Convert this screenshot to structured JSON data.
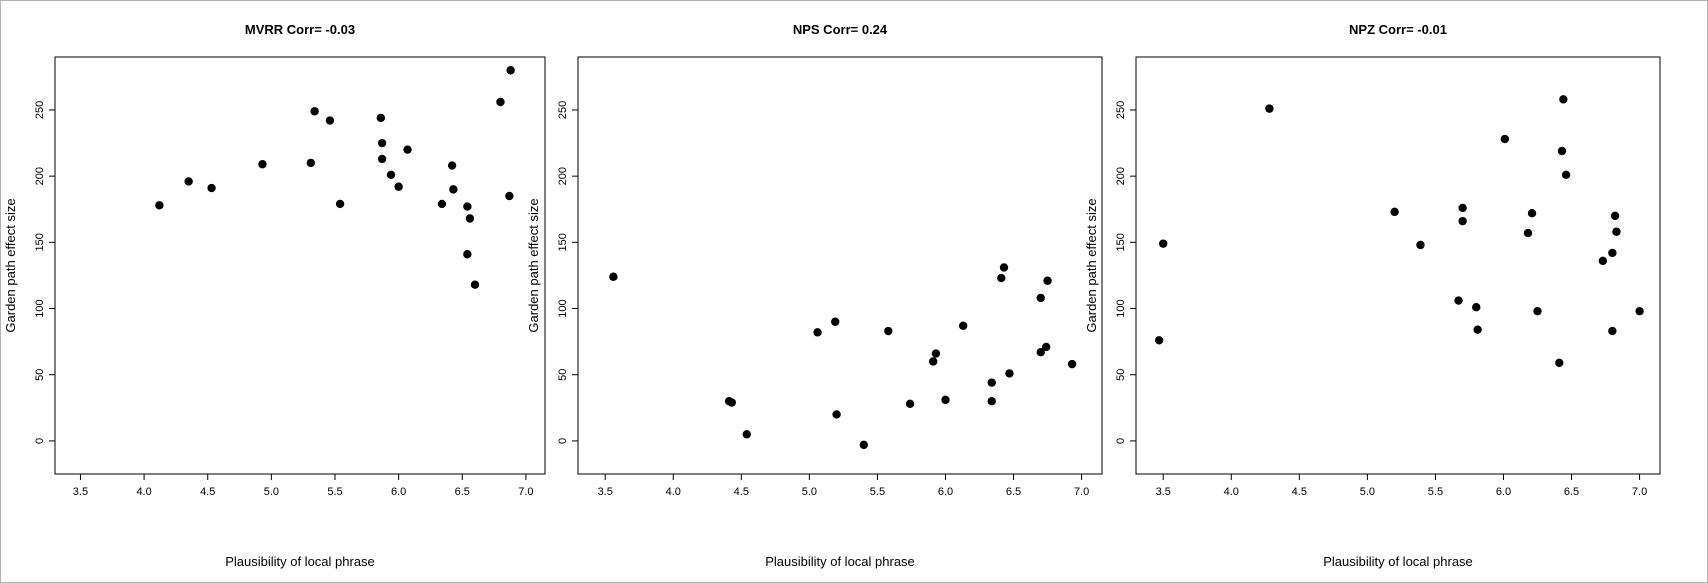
{
  "chart_data": [
    {
      "type": "scatter",
      "title": "MVRR Corr= -0.03",
      "xlabel": "Plausibility of local phrase",
      "ylabel": "Garden path effect size",
      "xlim": [
        3.3,
        7.15
      ],
      "ylim": [
        -25,
        290
      ],
      "xticks": [
        "3.5",
        "4.0",
        "4.5",
        "5.0",
        "5.5",
        "6.0",
        "6.5",
        "7.0"
      ],
      "yticks": [
        "0",
        "50",
        "100",
        "150",
        "200",
        "250"
      ],
      "grid": false,
      "points": [
        {
          "x": 4.12,
          "y": 178
        },
        {
          "x": 4.35,
          "y": 196
        },
        {
          "x": 4.53,
          "y": 191
        },
        {
          "x": 4.93,
          "y": 209
        },
        {
          "x": 5.31,
          "y": 210
        },
        {
          "x": 5.34,
          "y": 249
        },
        {
          "x": 5.46,
          "y": 242
        },
        {
          "x": 5.54,
          "y": 179
        },
        {
          "x": 5.86,
          "y": 244
        },
        {
          "x": 5.87,
          "y": 225
        },
        {
          "x": 5.87,
          "y": 213
        },
        {
          "x": 5.94,
          "y": 201
        },
        {
          "x": 6.0,
          "y": 192
        },
        {
          "x": 6.07,
          "y": 220
        },
        {
          "x": 6.34,
          "y": 179
        },
        {
          "x": 6.42,
          "y": 208
        },
        {
          "x": 6.43,
          "y": 190
        },
        {
          "x": 6.54,
          "y": 177
        },
        {
          "x": 6.56,
          "y": 168
        },
        {
          "x": 6.54,
          "y": 141
        },
        {
          "x": 6.6,
          "y": 118
        },
        {
          "x": 6.8,
          "y": 256
        },
        {
          "x": 6.87,
          "y": 185
        },
        {
          "x": 6.88,
          "y": 280
        }
      ]
    },
    {
      "type": "scatter",
      "title": "NPS Corr= 0.24",
      "xlabel": "Plausibility of local phrase",
      "ylabel": "Garden path effect size",
      "xlim": [
        3.3,
        7.15
      ],
      "ylim": [
        -25,
        290
      ],
      "xticks": [
        "3.5",
        "4.0",
        "4.5",
        "5.0",
        "5.5",
        "6.0",
        "6.5",
        "7.0"
      ],
      "yticks": [
        "0",
        "50",
        "100",
        "150",
        "200",
        "250"
      ],
      "grid": false,
      "points": [
        {
          "x": 3.56,
          "y": 124
        },
        {
          "x": 4.41,
          "y": 30
        },
        {
          "x": 4.43,
          "y": 29
        },
        {
          "x": 4.54,
          "y": 5
        },
        {
          "x": 5.06,
          "y": 82
        },
        {
          "x": 5.19,
          "y": 90
        },
        {
          "x": 5.2,
          "y": 20
        },
        {
          "x": 5.4,
          "y": -3
        },
        {
          "x": 5.58,
          "y": 83
        },
        {
          "x": 5.74,
          "y": 28
        },
        {
          "x": 5.91,
          "y": 60
        },
        {
          "x": 5.93,
          "y": 66
        },
        {
          "x": 6.0,
          "y": 31
        },
        {
          "x": 6.13,
          "y": 87
        },
        {
          "x": 6.34,
          "y": 44
        },
        {
          "x": 6.34,
          "y": 30
        },
        {
          "x": 6.41,
          "y": 123
        },
        {
          "x": 6.43,
          "y": 131
        },
        {
          "x": 6.47,
          "y": 51
        },
        {
          "x": 6.7,
          "y": 108
        },
        {
          "x": 6.7,
          "y": 67
        },
        {
          "x": 6.74,
          "y": 71
        },
        {
          "x": 6.75,
          "y": 121
        },
        {
          "x": 6.93,
          "y": 58
        }
      ]
    },
    {
      "type": "scatter",
      "title": "NPZ Corr= -0.01",
      "xlabel": "Plausibility of local phrase",
      "ylabel": "Garden path effect size",
      "xlim": [
        3.3,
        7.15
      ],
      "ylim": [
        -25,
        290
      ],
      "xticks": [
        "3.5",
        "4.0",
        "4.5",
        "5.0",
        "5.5",
        "6.0",
        "6.5",
        "7.0"
      ],
      "yticks": [
        "0",
        "50",
        "100",
        "150",
        "200",
        "250"
      ],
      "grid": false,
      "points": [
        {
          "x": 3.47,
          "y": 76
        },
        {
          "x": 3.5,
          "y": 149
        },
        {
          "x": 4.28,
          "y": 251
        },
        {
          "x": 5.2,
          "y": 173
        },
        {
          "x": 5.39,
          "y": 148
        },
        {
          "x": 5.67,
          "y": 106
        },
        {
          "x": 5.7,
          "y": 176
        },
        {
          "x": 5.7,
          "y": 166
        },
        {
          "x": 5.8,
          "y": 101
        },
        {
          "x": 5.81,
          "y": 84
        },
        {
          "x": 6.01,
          "y": 228
        },
        {
          "x": 6.18,
          "y": 157
        },
        {
          "x": 6.21,
          "y": 172
        },
        {
          "x": 6.25,
          "y": 98
        },
        {
          "x": 6.41,
          "y": 59
        },
        {
          "x": 6.43,
          "y": 219
        },
        {
          "x": 6.44,
          "y": 258
        },
        {
          "x": 6.46,
          "y": 201
        },
        {
          "x": 6.73,
          "y": 136
        },
        {
          "x": 6.8,
          "y": 142
        },
        {
          "x": 6.8,
          "y": 83
        },
        {
          "x": 6.82,
          "y": 170
        },
        {
          "x": 6.83,
          "y": 158
        },
        {
          "x": 7.0,
          "y": 98
        }
      ]
    }
  ]
}
